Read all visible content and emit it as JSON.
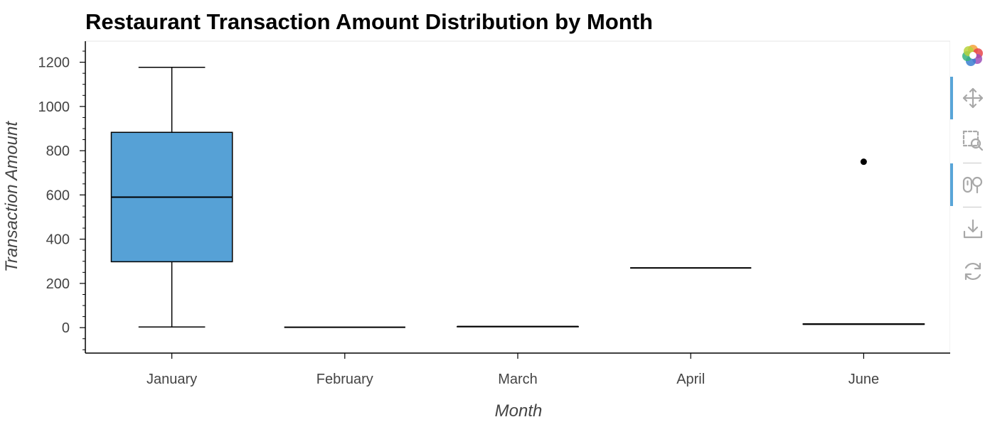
{
  "colors": {
    "box_fill": "#56a1d6",
    "box_stroke": "#000000",
    "outlier": "#000000",
    "axis": "#000000",
    "tool_icon": "#a8a8a8",
    "tool_active": "#59a5d8"
  },
  "toolbar": {
    "items": [
      {
        "icon": "bokeh-logo-icon",
        "active": false,
        "interactable": true
      },
      {
        "icon": "pan-icon",
        "active": true,
        "interactable": true
      },
      {
        "icon": "box-zoom-icon",
        "active": false,
        "interactable": true
      },
      {
        "icon": "wheel-zoom-icon",
        "active": true,
        "interactable": true
      },
      {
        "icon": "save-icon",
        "active": false,
        "interactable": true
      },
      {
        "icon": "reset-icon",
        "active": false,
        "interactable": true
      }
    ]
  },
  "chart_data": {
    "type": "box",
    "title": "Restaurant Transaction Amount Distribution by Month",
    "xlabel": "Month",
    "ylabel": "Transaction Amount",
    "ylim": [
      -115,
      1295
    ],
    "yticks": [
      0,
      200,
      400,
      600,
      800,
      1000,
      1200
    ],
    "categories": [
      "January",
      "February",
      "March",
      "April",
      "June"
    ],
    "boxes": [
      {
        "category": "January",
        "whisker_low": 3,
        "q1": 298,
        "median": 590,
        "q3": 883,
        "whisker_high": 1177,
        "outliers": []
      },
      {
        "category": "February",
        "whisker_low": 2,
        "q1": 2,
        "median": 2,
        "q3": 2,
        "whisker_high": 2,
        "outliers": []
      },
      {
        "category": "March",
        "whisker_low": 4,
        "q1": 4,
        "median": 5,
        "q3": 5,
        "whisker_high": 5,
        "outliers": []
      },
      {
        "category": "April",
        "whisker_low": 270,
        "q1": 270,
        "median": 270,
        "q3": 270,
        "whisker_high": 270,
        "outliers": []
      },
      {
        "category": "June",
        "whisker_low": 15,
        "q1": 15,
        "median": 16,
        "q3": 17,
        "whisker_high": 17,
        "outliers": [
          750
        ]
      }
    ],
    "grid": false,
    "legend": "none"
  }
}
